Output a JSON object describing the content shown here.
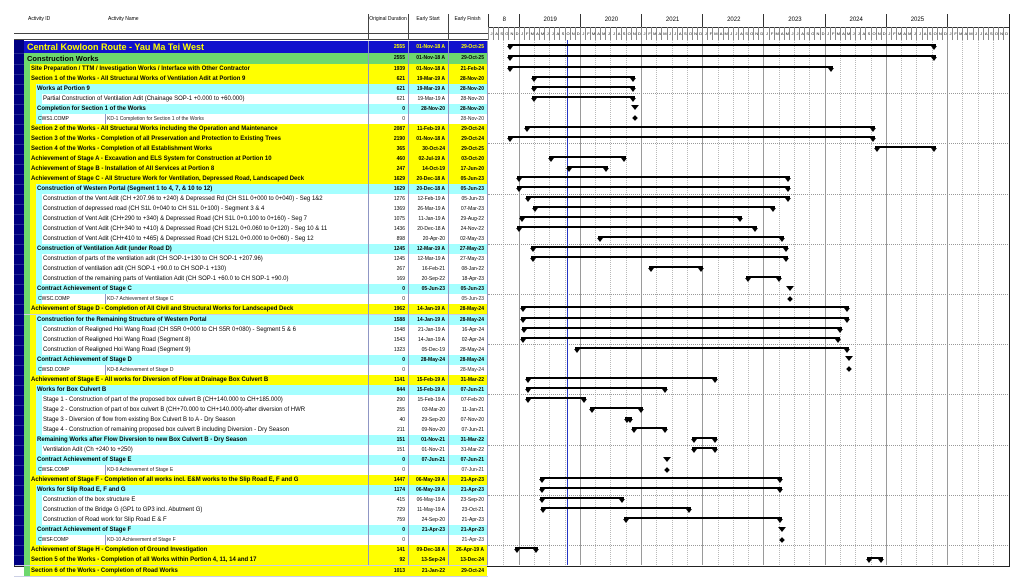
{
  "title_bar": {
    "project_title": "Central Kowloon Route - Yau Ma Tei West"
  },
  "colors": {
    "navy_stripe": "#000082",
    "title_bg": "#1111cd",
    "title_fg": "#ffff00",
    "group_bg": "#6ed86e",
    "band_yellow": "#ffff00",
    "band_cyan": "#a5ffff",
    "task_bg": "#ffffff",
    "bar": "#000000",
    "data_date_line": "#2334c4"
  },
  "table": {
    "columns": [
      "Activity ID",
      "Activity Name",
      "Original Duration",
      "Early Start",
      "Early Finish"
    ],
    "rows": [
      {
        "style": "title",
        "name": "Central Kowloon Route - Yau Ma Tei West",
        "dur": "2555",
        "start": "01-Nov-18 A",
        "finish": "29-Oct-25",
        "marker": "bar"
      },
      {
        "style": "green",
        "name": "Construction Works",
        "dur": "2555",
        "start": "01-Nov-18 A",
        "finish": "29-Oct-25",
        "marker": "bar"
      },
      {
        "style": "yellow",
        "name": "Site Preparation / TTM / Investigation Works / Interface with Other Contractor",
        "dur": "1939",
        "start": "01-Nov-18 A",
        "finish": "21-Feb-24",
        "marker": "bar"
      },
      {
        "style": "yellow",
        "name": "Section 1 of the Works - All Structural Works of Ventilation Adit at Portion 9",
        "dur": "621",
        "start": "19-Mar-19 A",
        "finish": "28-Nov-20",
        "marker": "bar"
      },
      {
        "style": "cyan",
        "name": "Works at Portion 9",
        "dur": "621",
        "start": "19-Mar-19 A",
        "finish": "28-Nov-20",
        "marker": "bar"
      },
      {
        "style": "task",
        "name": "Partial Construction of Ventilation Adit (Chainage SOP-1 +0.000 to +60.000)",
        "dur": "621",
        "start": "19-Mar-19 A",
        "finish": "28-Nov-20",
        "marker": "bar"
      },
      {
        "style": "cyan",
        "name": "Completion for Section 1 of the Works",
        "dur": "0",
        "start": "28-Nov-20",
        "finish": "28-Nov-20",
        "marker": "triangle"
      },
      {
        "style": "comp",
        "id": "CWS1.COMP",
        "name": "KD-1 Completion for Section 1 of the Works",
        "dur": "0",
        "start": "",
        "finish": "28-Nov-20",
        "marker": "diamond"
      },
      {
        "style": "yellow",
        "name": "Section 2 of the Works - All Structural Works including the Operation and Maintenance",
        "dur": "2087",
        "start": "11-Feb-19 A",
        "finish": "29-Oct-24",
        "marker": "bar"
      },
      {
        "style": "yellow",
        "name": "Section 3 of the Works - Completion of all Preservation and Protection to Existing Trees",
        "dur": "2190",
        "start": "01-Nov-18 A",
        "finish": "29-Oct-24",
        "marker": "bar"
      },
      {
        "style": "yellow",
        "name": "Section 4 of the Works - Completion of all Establishment Works",
        "dur": "365",
        "start": "30-Oct-24",
        "finish": "29-Oct-25",
        "marker": "bar"
      },
      {
        "style": "yellow",
        "name": "Achievement of Stage A -  Excavation and ELS System for Construction at Portion 10",
        "dur": "460",
        "start": "02-Jul-19 A",
        "finish": "03-Oct-20",
        "marker": "bar"
      },
      {
        "style": "yellow",
        "name": "Achievement of Stage B -  Installation of All Services at Portion 8",
        "dur": "247",
        "start": "14-Oct-19",
        "finish": "17-Jun-20",
        "marker": "bar"
      },
      {
        "style": "yellow",
        "name": "Achievement of Stage C -   All Structure Work for Ventilation, Depressed Road, Landscaped Deck",
        "dur": "1629",
        "start": "20-Dec-18 A",
        "finish": "05-Jun-23",
        "marker": "bar"
      },
      {
        "style": "cyan",
        "name": "Construction of Western Portal (Segment 1 to 4, 7, & 10 to 12)",
        "dur": "1629",
        "start": "20-Dec-18 A",
        "finish": "05-Jun-23",
        "marker": "bar"
      },
      {
        "style": "task",
        "name": "Construction of the Vent Adit (CH +207.96 to  +240) & Depressed Rd (CH S1L 0+000 to 0+040) - Seg 1&2",
        "dur": "1276",
        "start": "12-Feb-19 A",
        "finish": "05-Jun-23",
        "marker": "bar"
      },
      {
        "style": "task",
        "name": "Construction of depressed road (CH S1L 0+040 to CH S1L 0+100) - Segment 3 & 4",
        "dur": "1369",
        "start": "26-Mar-19 A",
        "finish": "07-Mar-23",
        "marker": "bar"
      },
      {
        "style": "task",
        "name": "Construction of Vent Adit (CH+290 to +340) & Depressed Road (CH S1L 0+0.100 to 0+160) - Seg 7",
        "dur": "1075",
        "start": "11-Jan-19 A",
        "finish": "29-Aug-22",
        "marker": "bar"
      },
      {
        "style": "task",
        "name": "Construction of Vent Adit (CH+340 to +410) & Depressed Road (CH S12L 0+0.060 to 0+120) - Seg 10 & 11",
        "dur": "1436",
        "start": "20-Dec-18 A",
        "finish": "24-Nov-22",
        "marker": "bar"
      },
      {
        "style": "task",
        "name": "Construction of Vent Adit (CH+410 to +465) & Depressed Road (CH S12L 0+0.000 to 0+060) - Seg 12",
        "dur": "898",
        "start": "20-Apr-20",
        "finish": "02-May-23",
        "marker": "bar"
      },
      {
        "style": "cyan",
        "name": "Construction of Ventilation Adit (under Road D)",
        "dur": "1245",
        "start": "12-Mar-19 A",
        "finish": "27-May-23",
        "marker": "bar"
      },
      {
        "style": "task",
        "name": "Construction of parts of the ventilation adit (CH SOP-1+130 to CH SOP-1 +207.96)",
        "dur": "1245",
        "start": "12-Mar-19 A",
        "finish": "27-May-23",
        "marker": "bar"
      },
      {
        "style": "task",
        "name": "Construction of ventilation adit (CH SOP-1 +90.0 to CH SOP-1 +130)",
        "dur": "267",
        "start": "16-Feb-21",
        "finish": "08-Jan-22",
        "marker": "bar"
      },
      {
        "style": "task",
        "name": "Construction of the remaining parts of Ventilation Adit (CH SOP-1 +60.0 to CH SOP-1 +90.0)",
        "dur": "169",
        "start": "20-Sep-22",
        "finish": "18-Apr-23",
        "marker": "bar"
      },
      {
        "style": "cyan",
        "name": "Contract Achievement of Stage C",
        "dur": "0",
        "start": "05-Jun-23",
        "finish": "05-Jun-23",
        "marker": "triangle"
      },
      {
        "style": "comp",
        "id": "CWSC.COMP",
        "name": "KD-7 Achievement of Stage C",
        "dur": "0",
        "start": "",
        "finish": "05-Jun-23",
        "marker": "diamond"
      },
      {
        "style": "yellow",
        "name": "Achievement of Stage D -  Completion of All Civil and Structural Works for Landscaped Deck",
        "dur": "1962",
        "start": "14-Jan-19 A",
        "finish": "28-May-24",
        "marker": "bar"
      },
      {
        "style": "cyan",
        "name": "Construction for the Remaining Structure of Western Portal",
        "dur": "1588",
        "start": "14-Jan-19 A",
        "finish": "28-May-24",
        "marker": "bar"
      },
      {
        "style": "task",
        "name": "Construction of Realigned Hoi Wang Road (CH S5R 0+000 to CH S5R 0+080) - Segment 5 & 6",
        "dur": "1548",
        "start": "21-Jan-19 A",
        "finish": "16-Apr-24",
        "marker": "bar"
      },
      {
        "style": "task",
        "name": "Construction of Realigned Hoi Wang Road (Segment 8)",
        "dur": "1543",
        "start": "14-Jan-19 A",
        "finish": "02-Apr-24",
        "marker": "bar"
      },
      {
        "style": "task",
        "name": "Construction of Realigned Hoi Wang Road (Segment 9)",
        "dur": "1323",
        "start": "05-Dec-19",
        "finish": "28-May-24",
        "marker": "bar"
      },
      {
        "style": "cyan",
        "name": "Contract Achievement of Stage D",
        "dur": "0",
        "start": "28-May-24",
        "finish": "28-May-24",
        "marker": "triangle"
      },
      {
        "style": "comp",
        "id": "CWSD.COMP",
        "name": "KD-8 Achievement of Stage D",
        "dur": "0",
        "start": "",
        "finish": "28-May-24",
        "marker": "diamond"
      },
      {
        "style": "yellow",
        "name": "Achievement of Stage E -  All works for Diversion of Flow at Drainage Box Culvert B",
        "dur": "1141",
        "start": "15-Feb-19 A",
        "finish": "31-Mar-22",
        "marker": "bar"
      },
      {
        "style": "cyan",
        "name": "Works for Box Culvert B",
        "dur": "844",
        "start": "15-Feb-19 A",
        "finish": "07-Jun-21",
        "marker": "bar"
      },
      {
        "style": "task",
        "name": "Stage 1 - Construction of part of the proposed box culvert B (CH+140.000 to CH+185.000)",
        "dur": "290",
        "start": "15-Feb-19 A",
        "finish": "07-Feb-20",
        "marker": "bar"
      },
      {
        "style": "task",
        "name": "Stage 2 - Construction of part of box culvert B (CH+70.000 to CH+140.000)-after diversion of HWR",
        "dur": "255",
        "start": "03-Mar-20",
        "finish": "11-Jan-21",
        "marker": "bar"
      },
      {
        "style": "task",
        "name": "Stage 3 - Diversion of flow from existing Box Culvert B to A - Dry Season",
        "dur": "40",
        "start": "29-Sep-20",
        "finish": "07-Nov-20",
        "marker": "bar"
      },
      {
        "style": "task",
        "name": "Stage 4 - Construction of remaining proposed box culvert B including Diversion - Dry Season",
        "dur": "211",
        "start": "09-Nov-20",
        "finish": "07-Jun-21",
        "marker": "bar"
      },
      {
        "style": "cyan",
        "name": "Remaining Works after Flow Diversion to new Box Culvert B - Dry Season",
        "dur": "151",
        "start": "01-Nov-21",
        "finish": "31-Mar-22",
        "marker": "bar"
      },
      {
        "style": "task",
        "name": "Ventilation Adit (Ch +240 to +250)",
        "dur": "151",
        "start": "01-Nov-21",
        "finish": "31-Mar-22",
        "marker": "bar"
      },
      {
        "style": "cyan",
        "name": "Contract Achievement of Stage E",
        "dur": "0",
        "start": "07-Jun-21",
        "finish": "07-Jun-21",
        "marker": "triangle"
      },
      {
        "style": "comp",
        "id": "CWSE.COMP",
        "name": "KD-9 Achievement of Stage E",
        "dur": "0",
        "start": "",
        "finish": "07-Jun-21",
        "marker": "diamond"
      },
      {
        "style": "yellow",
        "name": "Achievement of Stage F -  Completion of all works incl. E&M works to the Slip Road E, F and G",
        "dur": "1447",
        "start": "06-May-19 A",
        "finish": "21-Apr-23",
        "marker": "bar"
      },
      {
        "style": "cyan",
        "name": "Works for Slip Road E, F and G",
        "dur": "1174",
        "start": "06-May-19 A",
        "finish": "21-Apr-23",
        "marker": "bar"
      },
      {
        "style": "task",
        "name": "Construction of the box structure E",
        "dur": "415",
        "start": "06-May-19 A",
        "finish": "23-Sep-20",
        "marker": "bar"
      },
      {
        "style": "task",
        "name": "Construction of the Bridge G (GP1 to GP3 incl. Abutment G)",
        "dur": "729",
        "start": "11-May-19 A",
        "finish": "23-Oct-21",
        "marker": "bar"
      },
      {
        "style": "task",
        "name": "Construction of Road work for Slip Road E & F",
        "dur": "759",
        "start": "24-Sep-20",
        "finish": "21-Apr-23",
        "marker": "bar"
      },
      {
        "style": "cyan",
        "name": "Contract Achievement of Stage F",
        "dur": "0",
        "start": "21-Apr-23",
        "finish": "21-Apr-23",
        "marker": "triangle"
      },
      {
        "style": "comp",
        "id": "CWSF.COMP",
        "name": "KD-10 Achievement of Stage F",
        "dur": "0",
        "start": "",
        "finish": "21-Apr-23",
        "marker": "diamond"
      },
      {
        "style": "yellow",
        "name": "Achievement of Stage H -  Completion of Ground Investigation",
        "dur": "141",
        "start": "09-Dec-18 A",
        "finish": "26-Apr-19 A",
        "marker": "bar"
      },
      {
        "style": "yellow",
        "name": "Section 5 of the Works - Completion of all Works within Portion 4, 11, 14 and 17",
        "dur": "92",
        "start": "13-Sep-24",
        "finish": "13-Dec-24",
        "marker": "bar"
      },
      {
        "style": "yellow",
        "name": "Section 6 of the Works - Completion of Road Works",
        "dur": "1013",
        "start": "21-Jan-22",
        "finish": "29-Oct-24",
        "marker": "bar"
      }
    ]
  },
  "gantt": {
    "years": [
      {
        "label": "8",
        "months": 6
      },
      {
        "label": "2019",
        "months": 12
      },
      {
        "label": "2020",
        "months": 12
      },
      {
        "label": "2021",
        "months": 12
      },
      {
        "label": "2022",
        "months": 12
      },
      {
        "label": "2023",
        "months": 12
      },
      {
        "label": "2024",
        "months": 12
      },
      {
        "label": "2025",
        "months": 12
      },
      {
        "label": "",
        "months": 12
      }
    ],
    "month_letters": "JFMAMJJASOND",
    "timeline_start_month_index": 6
  }
}
